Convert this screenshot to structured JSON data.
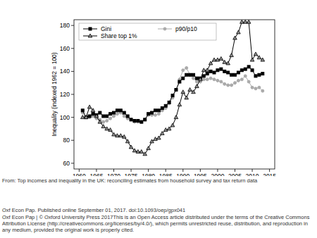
{
  "chart_data": {
    "type": "line",
    "y_label": "Inequality (indexed 1962 = 100)",
    "x": [
      1961,
      1962,
      1963,
      1964,
      1965,
      1966,
      1967,
      1968,
      1969,
      1970,
      1971,
      1972,
      1973,
      1974,
      1975,
      1976,
      1977,
      1978,
      1979,
      1980,
      1981,
      1982,
      1983,
      1984,
      1985,
      1986,
      1987,
      1988,
      1989,
      1990,
      1991,
      1992,
      1993,
      1994,
      1995,
      1996,
      1997,
      1998,
      1999,
      2000,
      2001,
      2002,
      2003,
      2004,
      2005,
      2006,
      2007,
      2008,
      2009,
      2010,
      2011,
      2012,
      2013
    ],
    "series": [
      {
        "name": "Gini",
        "color": "#000000",
        "marker": "square",
        "line_style": "solid",
        "values": [
          106,
          100,
          101,
          103,
          102,
          104,
          101,
          101,
          103,
          104,
          106,
          106,
          104,
          101,
          98,
          97,
          97,
          96,
          98,
          103,
          104,
          106,
          106,
          108,
          110,
          113,
          119,
          124,
          131,
          134,
          137,
          137,
          137,
          134,
          134,
          136,
          138,
          140,
          139,
          141,
          142,
          140,
          139,
          137,
          137,
          139,
          141,
          142,
          144,
          141,
          136,
          137,
          138
        ]
      },
      {
        "name": "Share top 1%",
        "color": "#000000",
        "marker": "triangle",
        "line_style": "solid",
        "values": [
          100,
          100,
          109,
          106,
          101,
          96,
          92,
          90,
          89,
          85,
          84,
          84,
          83,
          79,
          74,
          71,
          70,
          70,
          68,
          73,
          79,
          81,
          82,
          86,
          89,
          90,
          93,
          100,
          111,
          122,
          117,
          124,
          122,
          127,
          133,
          141,
          141,
          147,
          150,
          150,
          151,
          148,
          147,
          154,
          169,
          174,
          183,
          183,
          183,
          150,
          155,
          152,
          150
        ]
      },
      {
        "name": "p90/p10",
        "color": "#aaaaaa",
        "marker": "circle",
        "line_style": "solid",
        "values": [
          104,
          100,
          100,
          101,
          99,
          98,
          96,
          97,
          99,
          101,
          103,
          104,
          101,
          99,
          98,
          96,
          96,
          96,
          98,
          102,
          102,
          102,
          103,
          106,
          108,
          112,
          117,
          124,
          133,
          141,
          143,
          137,
          134,
          131,
          131,
          133,
          133,
          134,
          133,
          132,
          131,
          129,
          128,
          128,
          130,
          132,
          133,
          136,
          131,
          126,
          125,
          126,
          123
        ]
      }
    ],
    "xlim": [
      1958.5,
      2016.5
    ],
    "xticks": [
      1960,
      1965,
      1970,
      1975,
      1980,
      1985,
      1990,
      1995,
      2000,
      2005,
      2010,
      2015
    ],
    "ylim": [
      55,
      185
    ],
    "yticks": [
      60,
      80,
      100,
      120,
      140,
      160,
      180
    ],
    "grid": false,
    "legend": "top"
  },
  "footer": [
    "From: Top incomes and inequality in the UK: reconciling estimates from household survey and tax return data",
    "Oxf Econ Pap. Published online  September 01, 2017. doi:10.1093/oep/gpx041",
    "Oxf Econ Pap | © Oxford University Press 2017This is an Open Access article distributed under the terms of the Creative Commons Attribution License (http://creativecommons.org/licenses/by/4.0/), which permits unrestricted reuse, distribution, and reproduction in any medium, provided the original work is properly cited."
  ]
}
